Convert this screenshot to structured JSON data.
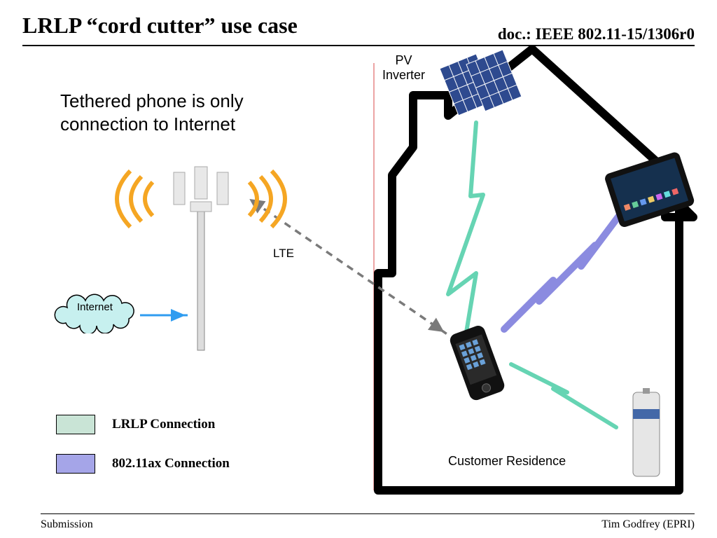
{
  "title": "LRLP “cord cutter” use case",
  "docnum": "doc.: IEEE 802.11-15/1306r0",
  "subtitle": "Tethered phone is only\nconnection to Internet",
  "footer_left": "Submission",
  "footer_right": "Tim Godfrey (EPRI)",
  "labels": {
    "pv": "PV\nInverter",
    "internet": "Internet",
    "lte": "LTE",
    "residence": "Customer Residence"
  },
  "legend": [
    {
      "color": "#c9e4d6",
      "text": "LRLP Connection"
    },
    {
      "color": "#a5a5e8",
      "text": "802.11ax Connection"
    }
  ],
  "colors": {
    "lrlp": "#66d4b3",
    "ax": "#8b8be0",
    "cloud_fill": "#c7f0ef",
    "panel": "#2e4a8f",
    "wave": "#f5a623",
    "arrow_blue": "#2f9cf0",
    "red_line": "#d84848"
  }
}
